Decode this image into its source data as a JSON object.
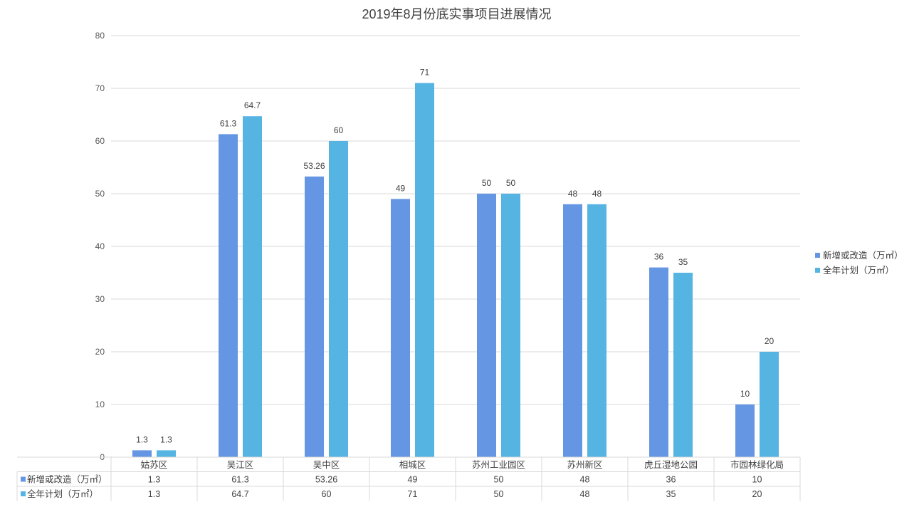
{
  "chart_data": {
    "type": "bar",
    "title": "2019年8月份底实事项目进展情况",
    "categories": [
      "姑苏区",
      "吴江区",
      "吴中区",
      "相城区",
      "苏州工业园区",
      "苏州新区",
      "虎丘湿地公园",
      "市园林绿化局"
    ],
    "series": [
      {
        "name": "新增或改造（万㎡）",
        "color": "#6496e3",
        "values": [
          1.3,
          61.3,
          53.26,
          49,
          50,
          48,
          36,
          10
        ],
        "labels": [
          "1.3",
          "61.3",
          "53.26",
          "49",
          "50",
          "48",
          "36",
          "10"
        ]
      },
      {
        "name": "全年计划（万㎡）",
        "color": "#56b4e3",
        "values": [
          1.3,
          64.7,
          60,
          71,
          50,
          48,
          35,
          20
        ],
        "labels": [
          "1.3",
          "64.7",
          "60",
          "71",
          "50",
          "48",
          "35",
          "20"
        ]
      }
    ],
    "ylim": [
      0,
      80
    ],
    "yticks": [
      0,
      10,
      20,
      30,
      40,
      50,
      60,
      70,
      80
    ],
    "grid": true,
    "legend": "right",
    "data_table": true
  }
}
